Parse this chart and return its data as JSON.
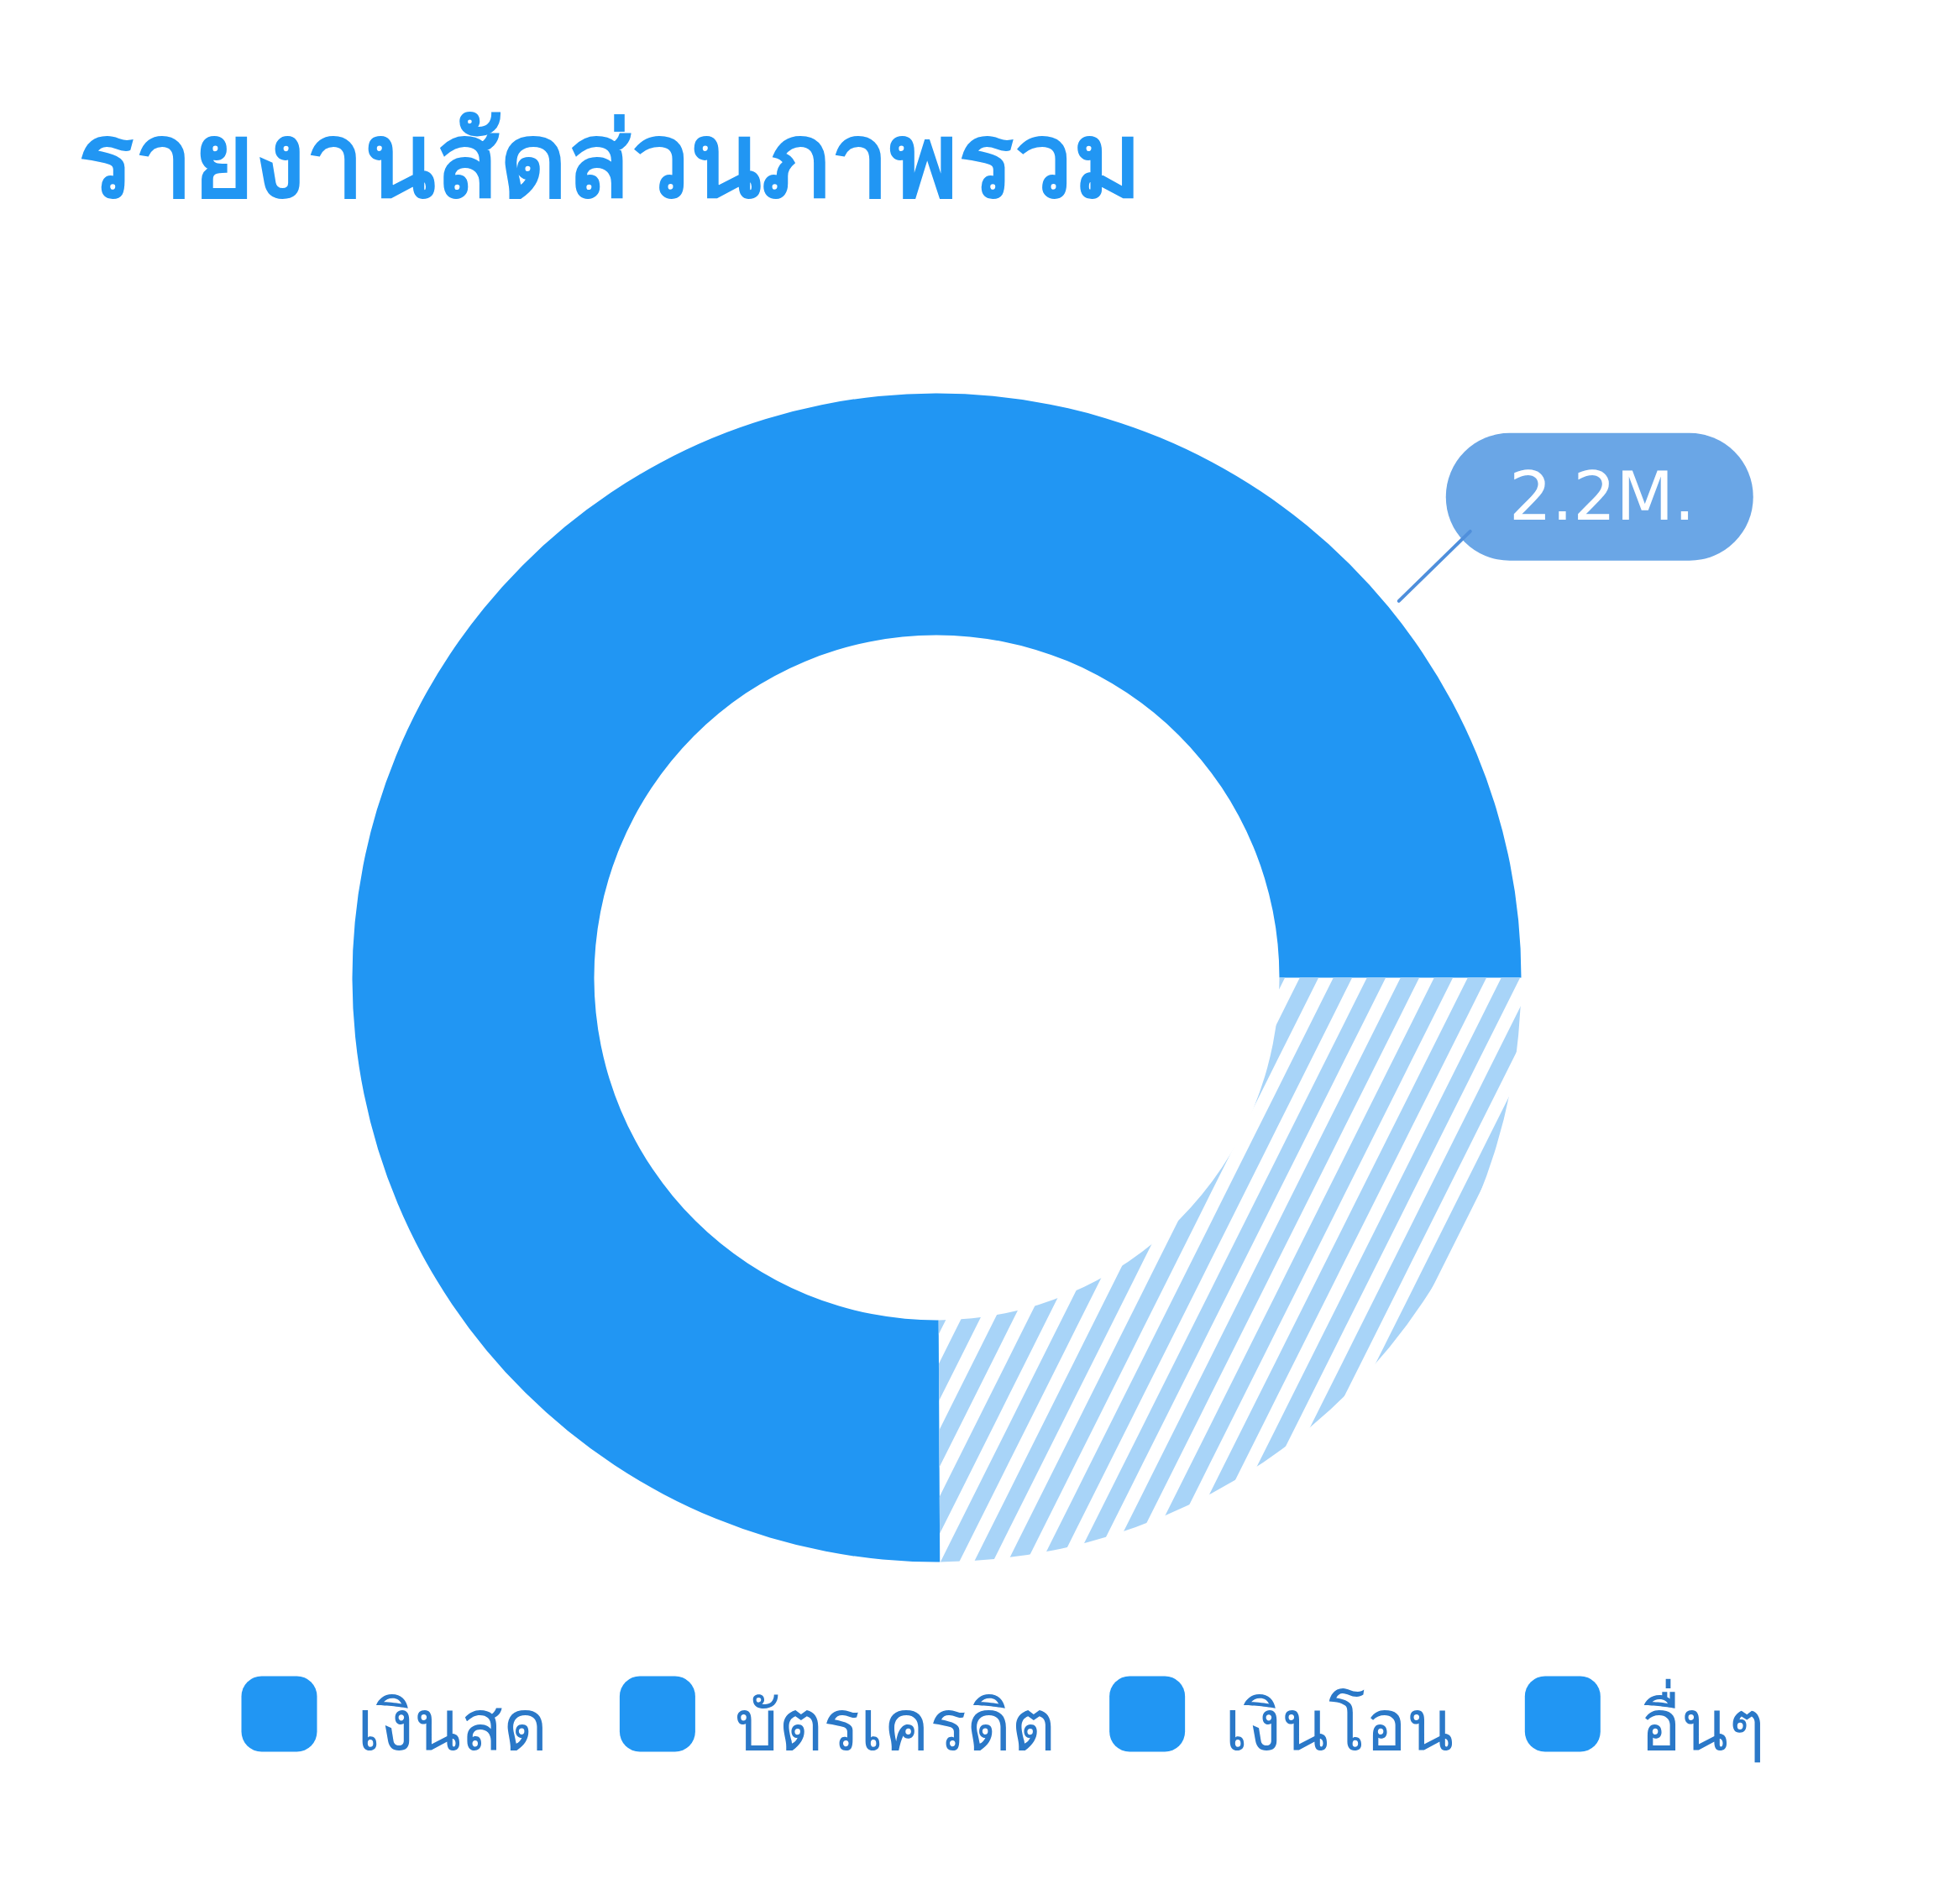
{
  "chart_data": {
    "type": "donut",
    "title": "รายงานสัดส่วนภาพรวม",
    "categories": [
      "เงินสด",
      "บัตรเครดิต",
      "เงินโอน",
      "อื่นๆ",
      null
    ],
    "values": [
      2.2,
      null,
      null,
      null,
      0.73
    ],
    "colors": [
      "#2196f3",
      "#2196f3",
      "#2196f3",
      "#2196f3",
      "#a8d4f8"
    ],
    "value_labels": [
      "2.2M.",
      null,
      null,
      null,
      null
    ],
    "legend": "bottom"
  }
}
